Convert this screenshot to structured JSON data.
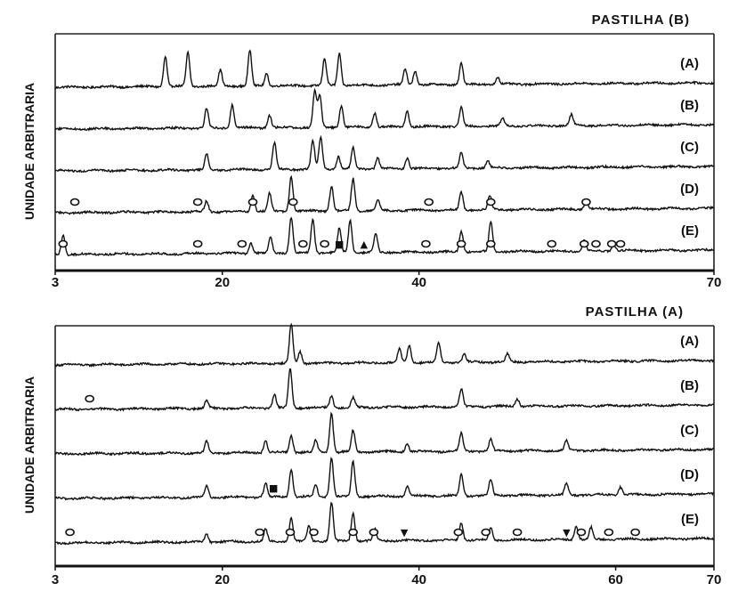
{
  "chart_data": [
    {
      "type": "line",
      "title": "PASTILHA (B)",
      "xlabel": "",
      "ylabel": "UNIDADE ARBITRARIA",
      "xlim": [
        3,
        70
      ],
      "x_ticks": [
        3,
        20,
        40,
        70
      ],
      "x_tick_labels": [
        "3",
        "20",
        "40",
        "70"
      ],
      "grid": false,
      "series": [
        {
          "name": "(A)",
          "baseline_level": 4,
          "peaks": [
            {
              "x": 14.2,
              "h": 0.85
            },
            {
              "x": 16.5,
              "h": 0.95
            },
            {
              "x": 19.8,
              "h": 0.45
            },
            {
              "x": 22.8,
              "h": 1.0
            },
            {
              "x": 24.5,
              "h": 0.35
            },
            {
              "x": 30.4,
              "h": 0.75
            },
            {
              "x": 31.9,
              "h": 0.9
            },
            {
              "x": 38.6,
              "h": 0.45
            },
            {
              "x": 39.6,
              "h": 0.4
            },
            {
              "x": 44.3,
              "h": 0.6
            },
            {
              "x": 48.0,
              "h": 0.2
            }
          ]
        },
        {
          "name": "(B)",
          "baseline_level": 3,
          "peaks": [
            {
              "x": 18.4,
              "h": 0.55
            },
            {
              "x": 21.0,
              "h": 0.65
            },
            {
              "x": 24.8,
              "h": 0.35
            },
            {
              "x": 29.4,
              "h": 1.0
            },
            {
              "x": 29.9,
              "h": 0.9
            },
            {
              "x": 32.1,
              "h": 0.6
            },
            {
              "x": 35.5,
              "h": 0.4
            },
            {
              "x": 38.8,
              "h": 0.45
            },
            {
              "x": 44.3,
              "h": 0.55
            },
            {
              "x": 48.5,
              "h": 0.2
            },
            {
              "x": 55.5,
              "h": 0.3
            }
          ]
        },
        {
          "name": "(C)",
          "baseline_level": 2,
          "peaks": [
            {
              "x": 18.4,
              "h": 0.45
            },
            {
              "x": 25.3,
              "h": 0.75
            },
            {
              "x": 29.2,
              "h": 0.8
            },
            {
              "x": 30.0,
              "h": 0.9
            },
            {
              "x": 31.8,
              "h": 0.35
            },
            {
              "x": 33.3,
              "h": 0.6
            },
            {
              "x": 35.8,
              "h": 0.3
            },
            {
              "x": 38.8,
              "h": 0.3
            },
            {
              "x": 44.3,
              "h": 0.45
            },
            {
              "x": 47.0,
              "h": 0.2
            }
          ]
        },
        {
          "name": "(D)",
          "baseline_level": 1,
          "peaks": [
            {
              "x": 18.4,
              "h": 0.3
            },
            {
              "x": 23.1,
              "h": 0.45
            },
            {
              "x": 24.8,
              "h": 0.5
            },
            {
              "x": 27.0,
              "h": 1.0
            },
            {
              "x": 31.1,
              "h": 0.7
            },
            {
              "x": 33.3,
              "h": 0.9
            },
            {
              "x": 35.8,
              "h": 0.3
            },
            {
              "x": 44.3,
              "h": 0.5
            },
            {
              "x": 47.2,
              "h": 0.4
            },
            {
              "x": 57.0,
              "h": 0.25
            }
          ]
        },
        {
          "name": "(E)",
          "baseline_level": 0,
          "peaks": [
            {
              "x": 3.8,
              "h": 0.55
            },
            {
              "x": 22.9,
              "h": 0.3
            },
            {
              "x": 24.9,
              "h": 0.45
            },
            {
              "x": 27.0,
              "h": 1.0
            },
            {
              "x": 29.2,
              "h": 0.95
            },
            {
              "x": 31.9,
              "h": 0.7
            },
            {
              "x": 33.0,
              "h": 0.9
            },
            {
              "x": 35.6,
              "h": 0.5
            },
            {
              "x": 44.3,
              "h": 0.6
            },
            {
              "x": 47.3,
              "h": 0.85
            },
            {
              "x": 56.8,
              "h": 0.3
            },
            {
              "x": 59.8,
              "h": 0.2
            }
          ]
        }
      ],
      "annotations": [
        {
          "symbol": "o",
          "x": 5.0,
          "level": 1
        },
        {
          "symbol": "o",
          "x": 17.5,
          "level": 1
        },
        {
          "symbol": "o",
          "x": 23.1,
          "level": 1
        },
        {
          "symbol": "o",
          "x": 27.2,
          "level": 1
        },
        {
          "symbol": "o",
          "x": 41.0,
          "level": 1
        },
        {
          "symbol": "o",
          "x": 47.3,
          "level": 1
        },
        {
          "symbol": "o",
          "x": 57.0,
          "level": 1
        },
        {
          "symbol": "o",
          "x": 3.8,
          "level": 0
        },
        {
          "symbol": "o",
          "x": 17.5,
          "level": 0
        },
        {
          "symbol": "o",
          "x": 22.0,
          "level": 0
        },
        {
          "symbol": "o",
          "x": 28.2,
          "level": 0
        },
        {
          "symbol": "o",
          "x": 30.4,
          "level": 0
        },
        {
          "symbol": "o",
          "x": 40.7,
          "level": 0
        },
        {
          "symbol": "o",
          "x": 44.3,
          "level": 0
        },
        {
          "symbol": "o",
          "x": 47.3,
          "level": 0
        },
        {
          "symbol": "o",
          "x": 53.5,
          "level": 0
        },
        {
          "symbol": "o",
          "x": 56.8,
          "level": 0
        },
        {
          "symbol": "o",
          "x": 58.0,
          "level": 0
        },
        {
          "symbol": "o",
          "x": 59.6,
          "level": 0
        },
        {
          "symbol": "o",
          "x": 60.5,
          "level": 0
        },
        {
          "symbol": "▲",
          "x": 34.4,
          "level": 0
        },
        {
          "symbol": "■",
          "x": 31.9,
          "level": 0
        }
      ]
    },
    {
      "type": "line",
      "title": "PASTILHA (A)",
      "xlabel": "",
      "ylabel": "UNIDADE ARBITRARIA",
      "xlim": [
        3,
        70
      ],
      "x_ticks": [
        3,
        20,
        40,
        60,
        70
      ],
      "x_tick_labels": [
        "3",
        "20",
        "40",
        "60",
        "70"
      ],
      "grid": false,
      "series": [
        {
          "name": "(A)",
          "baseline_level": 4,
          "peaks": [
            {
              "x": 27.0,
              "h": 1.0
            },
            {
              "x": 27.9,
              "h": 0.3
            },
            {
              "x": 38.0,
              "h": 0.35
            },
            {
              "x": 39.0,
              "h": 0.45
            },
            {
              "x": 42.0,
              "h": 0.5
            },
            {
              "x": 44.6,
              "h": 0.2
            },
            {
              "x": 49.0,
              "h": 0.2
            }
          ]
        },
        {
          "name": "(B)",
          "baseline_level": 3,
          "peaks": [
            {
              "x": 18.4,
              "h": 0.2
            },
            {
              "x": 25.3,
              "h": 0.35
            },
            {
              "x": 26.9,
              "h": 1.0
            },
            {
              "x": 31.1,
              "h": 0.3
            },
            {
              "x": 33.3,
              "h": 0.25
            },
            {
              "x": 44.3,
              "h": 0.45
            },
            {
              "x": 50.0,
              "h": 0.2
            }
          ]
        },
        {
          "name": "(C)",
          "baseline_level": 2,
          "peaks": [
            {
              "x": 18.4,
              "h": 0.3
            },
            {
              "x": 24.4,
              "h": 0.3
            },
            {
              "x": 27.0,
              "h": 0.45
            },
            {
              "x": 29.5,
              "h": 0.3
            },
            {
              "x": 31.1,
              "h": 1.0
            },
            {
              "x": 33.3,
              "h": 0.55
            },
            {
              "x": 38.8,
              "h": 0.2
            },
            {
              "x": 44.3,
              "h": 0.45
            },
            {
              "x": 47.3,
              "h": 0.3
            },
            {
              "x": 55.0,
              "h": 0.25
            }
          ]
        },
        {
          "name": "(D)",
          "baseline_level": 1,
          "peaks": [
            {
              "x": 18.4,
              "h": 0.3
            },
            {
              "x": 24.4,
              "h": 0.35
            },
            {
              "x": 27.0,
              "h": 0.7
            },
            {
              "x": 29.5,
              "h": 0.3
            },
            {
              "x": 31.1,
              "h": 1.0
            },
            {
              "x": 33.3,
              "h": 0.9
            },
            {
              "x": 38.8,
              "h": 0.25
            },
            {
              "x": 44.3,
              "h": 0.55
            },
            {
              "x": 47.3,
              "h": 0.4
            },
            {
              "x": 55.0,
              "h": 0.3
            },
            {
              "x": 60.5,
              "h": 0.2
            }
          ]
        },
        {
          "name": "(E)",
          "baseline_level": 0,
          "peaks": [
            {
              "x": 18.4,
              "h": 0.2
            },
            {
              "x": 24.4,
              "h": 0.3
            },
            {
              "x": 27.0,
              "h": 0.6
            },
            {
              "x": 28.8,
              "h": 0.4
            },
            {
              "x": 31.1,
              "h": 1.0
            },
            {
              "x": 33.3,
              "h": 0.7
            },
            {
              "x": 35.5,
              "h": 0.3
            },
            {
              "x": 44.3,
              "h": 0.45
            },
            {
              "x": 47.3,
              "h": 0.3
            },
            {
              "x": 56.0,
              "h": 0.35
            },
            {
              "x": 57.5,
              "h": 0.3
            }
          ]
        }
      ],
      "annotations": [
        {
          "symbol": "o",
          "x": 6.5,
          "level": 3
        },
        {
          "symbol": "■",
          "x": 25.2,
          "level": 1
        },
        {
          "symbol": "o",
          "x": 4.5,
          "level": 0
        },
        {
          "symbol": "o",
          "x": 23.8,
          "level": 0
        },
        {
          "symbol": "o",
          "x": 26.9,
          "level": 0
        },
        {
          "symbol": "o",
          "x": 29.3,
          "level": 0
        },
        {
          "symbol": "o",
          "x": 33.3,
          "level": 0
        },
        {
          "symbol": "o",
          "x": 35.4,
          "level": 0
        },
        {
          "symbol": "o",
          "x": 44.0,
          "level": 0
        },
        {
          "symbol": "o",
          "x": 46.8,
          "level": 0
        },
        {
          "symbol": "o",
          "x": 50.0,
          "level": 0
        },
        {
          "symbol": "o",
          "x": 56.5,
          "level": 0
        },
        {
          "symbol": "o",
          "x": 59.3,
          "level": 0
        },
        {
          "symbol": "o",
          "x": 62.0,
          "level": 0
        },
        {
          "symbol": "▼",
          "x": 38.5,
          "level": 0
        },
        {
          "symbol": "▼",
          "x": 55.0,
          "level": 0
        }
      ]
    }
  ]
}
